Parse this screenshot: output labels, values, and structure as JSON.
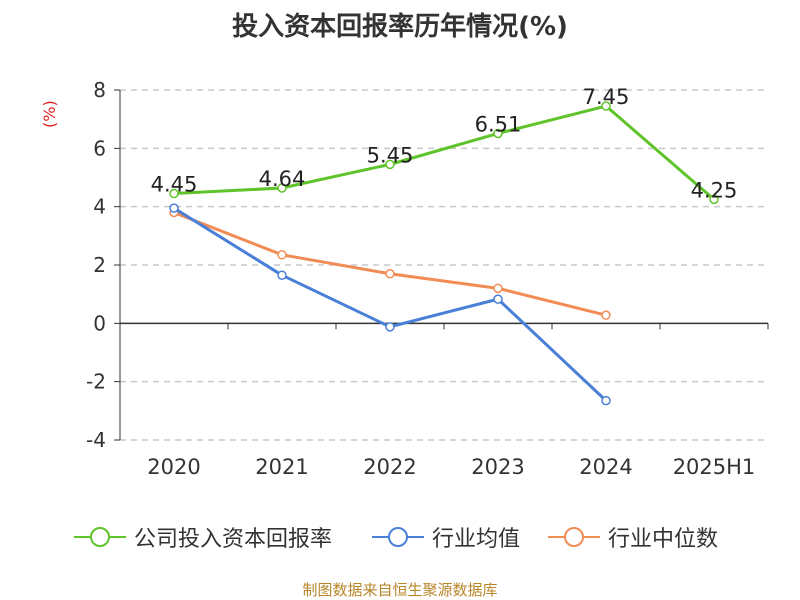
{
  "title": "投入资本回报率历年情况(%)",
  "source": "制图数据来自恒生聚源数据库",
  "chart_data": {
    "type": "line",
    "title": "投入资本回报率历年情况(%)",
    "ylabel": "(%)",
    "xlabel": "",
    "categories": [
      "2020",
      "2021",
      "2022",
      "2023",
      "2024",
      "2025H1"
    ],
    "ylim": [
      -4,
      8
    ],
    "yticks": [
      -4,
      -2,
      0,
      2,
      4,
      6,
      8
    ],
    "grid": "horizontal dashed",
    "legend_position": "bottom",
    "series": [
      {
        "name": "公司投入资本回报率",
        "color": "#5fc32a",
        "values": [
          4.45,
          4.64,
          5.45,
          6.51,
          7.45,
          4.25
        ],
        "labels": [
          "4.45",
          "4.64",
          "5.45",
          "6.51",
          "7.45",
          "4.25"
        ]
      },
      {
        "name": "行业均值",
        "color": "#4a7fd8",
        "values": [
          3.95,
          1.65,
          -0.12,
          0.83,
          -2.65,
          null
        ]
      },
      {
        "name": "行业中位数",
        "color": "#f28c55",
        "values": [
          3.8,
          2.35,
          1.7,
          1.2,
          0.28,
          null
        ]
      }
    ]
  }
}
